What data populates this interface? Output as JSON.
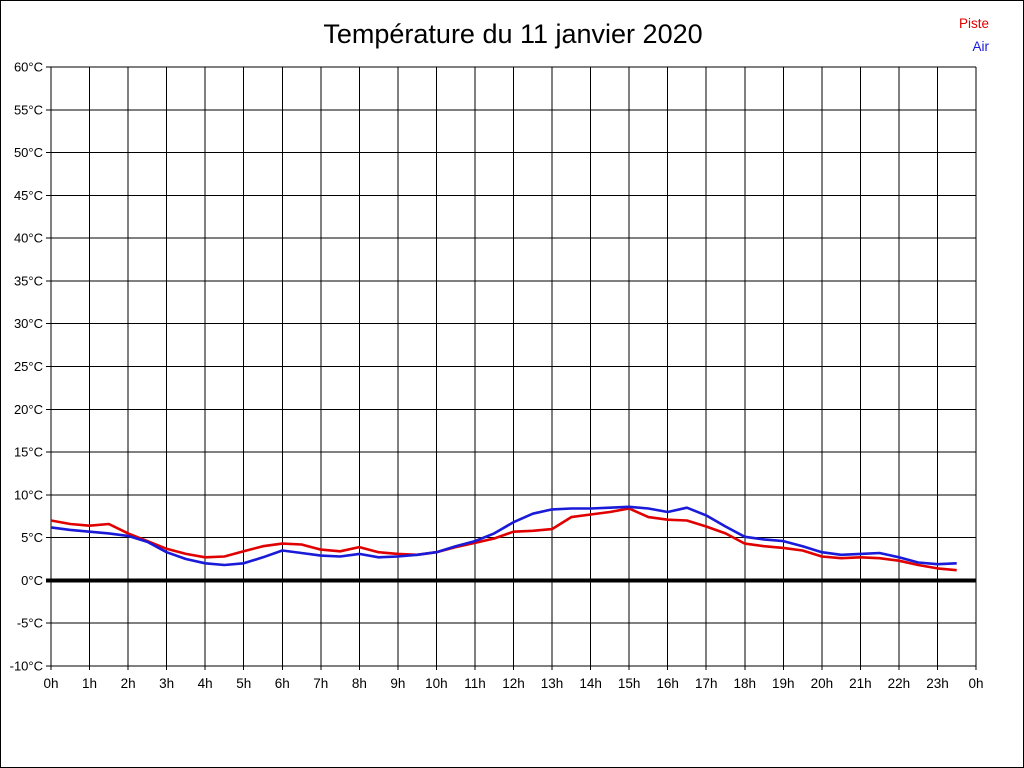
{
  "chart_data": {
    "type": "line",
    "title": "Température du 11 janvier 2020",
    "xlabel": "",
    "ylabel": "",
    "xlim": [
      0,
      24
    ],
    "ylim": [
      -10,
      60
    ],
    "grid": true,
    "zero_line": true,
    "legend_position": "top-right",
    "x_tick_labels": [
      "0h",
      "1h",
      "2h",
      "3h",
      "4h",
      "5h",
      "6h",
      "7h",
      "8h",
      "9h",
      "10h",
      "11h",
      "12h",
      "13h",
      "14h",
      "15h",
      "16h",
      "17h",
      "18h",
      "19h",
      "20h",
      "21h",
      "22h",
      "23h",
      "0h"
    ],
    "y_tick_labels": [
      "60°C",
      "55°C",
      "50°C",
      "45°C",
      "40°C",
      "35°C",
      "30°C",
      "25°C",
      "20°C",
      "15°C",
      "10°C",
      "5°C",
      "0°C",
      "-5°C",
      "-10°C"
    ],
    "x_unit": "hours",
    "y_unit": "°C",
    "x": [
      0,
      0.5,
      1,
      1.5,
      2,
      2.5,
      3,
      3.5,
      4,
      4.5,
      5,
      5.5,
      6,
      6.5,
      7,
      7.5,
      8,
      8.5,
      9,
      9.5,
      10,
      10.5,
      11,
      11.5,
      12,
      12.5,
      13,
      13.5,
      14,
      14.5,
      15,
      15.5,
      16,
      16.5,
      17,
      17.5,
      18,
      18.5,
      19,
      19.5,
      20,
      20.5,
      21,
      21.5,
      22,
      22.5,
      23,
      23.5
    ],
    "series": [
      {
        "name": "Piste",
        "color": "#e00000",
        "values": [
          7.0,
          6.6,
          6.4,
          6.6,
          5.5,
          4.6,
          3.7,
          3.1,
          2.7,
          2.8,
          3.4,
          4.0,
          4.3,
          4.2,
          3.6,
          3.4,
          3.9,
          3.3,
          3.1,
          3.0,
          3.3,
          3.9,
          4.4,
          4.9,
          5.7,
          5.8,
          6.0,
          7.4,
          7.7,
          8.0,
          8.4,
          7.4,
          7.1,
          7.0,
          6.3,
          5.5,
          4.3,
          4.0,
          3.8,
          3.5,
          2.8,
          2.6,
          2.7,
          2.6,
          2.3,
          1.8,
          1.4,
          1.2
        ]
      },
      {
        "name": "Air",
        "color": "#1a1ad9",
        "values": [
          6.2,
          5.9,
          5.7,
          5.5,
          5.2,
          4.5,
          3.3,
          2.5,
          2.0,
          1.8,
          2.0,
          2.7,
          3.5,
          3.2,
          2.9,
          2.8,
          3.1,
          2.7,
          2.8,
          3.0,
          3.3,
          4.0,
          4.6,
          5.5,
          6.8,
          7.8,
          8.3,
          8.4,
          8.4,
          8.5,
          8.6,
          8.4,
          8.0,
          8.5,
          7.6,
          6.3,
          5.1,
          4.8,
          4.6,
          4.0,
          3.3,
          3.0,
          3.1,
          3.2,
          2.7,
          2.1,
          1.9,
          2.0
        ]
      }
    ]
  }
}
